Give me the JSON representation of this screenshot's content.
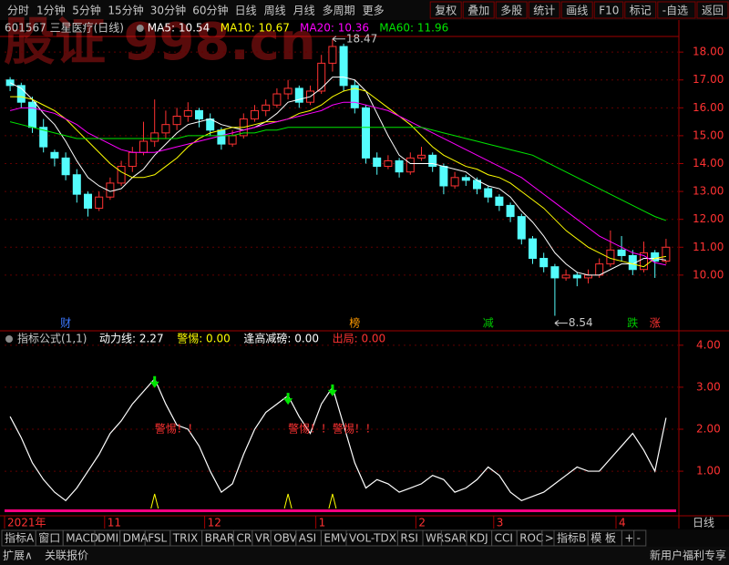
{
  "toolbar": {
    "left": [
      "分时",
      "1分钟",
      "5分钟",
      "15分钟",
      "30分钟",
      "60分钟",
      "日线",
      "周线",
      "月线",
      "多周期",
      "更多"
    ],
    "right": [
      "复权",
      "叠加",
      "多股",
      "统计",
      "画线",
      "F10",
      "标记",
      "-自选",
      "返回"
    ]
  },
  "watermark": "股证 998.cn",
  "chart_data": [
    {
      "type": "candlestick",
      "title": "601567 三星医疗(日线)",
      "up_color": "#ff3232",
      "down_color": "#54fcfc",
      "ylim": [
        8.1,
        18.56
      ],
      "yticks": [
        {
          "value": 10,
          "label": "10.00"
        },
        {
          "value": 11,
          "label": "11.00"
        },
        {
          "value": 12,
          "label": "12.00"
        },
        {
          "value": 13,
          "label": "13.00"
        },
        {
          "value": 14,
          "label": "14.00"
        },
        {
          "value": 15,
          "label": "15.00"
        },
        {
          "value": 16,
          "label": "16.00"
        },
        {
          "value": 17,
          "label": "17.00"
        },
        {
          "value": 18,
          "label": "18.00"
        }
      ],
      "grid": true,
      "ohlc": [
        [
          17.0,
          17.1,
          16.6,
          16.8
        ],
        [
          16.8,
          16.9,
          16.0,
          16.2
        ],
        [
          16.2,
          16.4,
          15.1,
          15.3
        ],
        [
          15.3,
          15.6,
          14.4,
          14.6
        ],
        [
          14.4,
          14.5,
          13.9,
          14.2
        ],
        [
          14.2,
          14.4,
          13.4,
          13.6
        ],
        [
          13.6,
          13.8,
          12.6,
          12.9
        ],
        [
          12.9,
          13.0,
          12.1,
          12.4
        ],
        [
          12.4,
          13.0,
          12.3,
          12.8
        ],
        [
          12.8,
          13.5,
          12.7,
          13.3
        ],
        [
          13.3,
          14.1,
          13.2,
          13.9
        ],
        [
          13.9,
          14.6,
          13.7,
          14.4
        ],
        [
          14.4,
          15.5,
          14.3,
          14.8
        ],
        [
          14.8,
          16.3,
          14.6,
          15.1
        ],
        [
          15.1,
          15.9,
          14.9,
          15.4
        ],
        [
          15.4,
          16.0,
          15.2,
          15.7
        ],
        [
          15.7,
          16.2,
          15.5,
          15.9
        ],
        [
          15.9,
          16.0,
          15.3,
          15.6
        ],
        [
          15.6,
          15.8,
          15.0,
          15.2
        ],
        [
          15.2,
          15.3,
          14.5,
          14.7
        ],
        [
          14.7,
          15.2,
          14.6,
          15.0
        ],
        [
          15.0,
          15.8,
          14.9,
          15.6
        ],
        [
          15.6,
          16.1,
          15.5,
          15.9
        ],
        [
          15.9,
          16.3,
          15.7,
          16.1
        ],
        [
          16.1,
          16.7,
          16.0,
          16.5
        ],
        [
          16.5,
          17.0,
          16.3,
          16.7
        ],
        [
          16.7,
          16.8,
          16.0,
          16.2
        ],
        [
          16.2,
          16.8,
          16.1,
          16.6
        ],
        [
          16.6,
          17.9,
          16.5,
          17.6
        ],
        [
          17.6,
          18.47,
          17.3,
          18.2
        ],
        [
          18.2,
          18.3,
          16.6,
          16.8
        ],
        [
          16.8,
          17.0,
          15.8,
          16.0
        ],
        [
          16.0,
          16.1,
          14.0,
          14.2
        ],
        [
          14.2,
          14.4,
          13.6,
          13.9
        ],
        [
          13.9,
          14.3,
          13.8,
          14.1
        ],
        [
          14.1,
          14.2,
          13.5,
          13.7
        ],
        [
          13.7,
          14.4,
          13.6,
          14.2
        ],
        [
          14.2,
          14.6,
          14.1,
          14.3
        ],
        [
          14.3,
          14.4,
          13.7,
          13.9
        ],
        [
          13.9,
          14.0,
          12.9,
          13.2
        ],
        [
          13.2,
          13.7,
          13.1,
          13.5
        ],
        [
          13.5,
          13.6,
          13.2,
          13.4
        ],
        [
          13.4,
          13.5,
          12.9,
          13.1
        ],
        [
          13.1,
          13.2,
          12.6,
          12.8
        ],
        [
          12.8,
          12.9,
          12.3,
          12.5
        ],
        [
          12.5,
          12.6,
          11.9,
          12.1
        ],
        [
          12.1,
          12.2,
          11.1,
          11.3
        ],
        [
          11.3,
          11.4,
          10.4,
          10.6
        ],
        [
          10.6,
          10.8,
          10.1,
          10.3
        ],
        [
          10.3,
          10.4,
          8.54,
          9.9
        ],
        [
          9.9,
          10.2,
          9.8,
          10.0
        ],
        [
          10.0,
          10.1,
          9.6,
          9.9
        ],
        [
          9.9,
          10.2,
          9.7,
          10.0
        ],
        [
          10.0,
          10.6,
          9.9,
          10.4
        ],
        [
          10.4,
          11.6,
          10.3,
          10.9
        ],
        [
          10.9,
          11.4,
          10.5,
          10.7
        ],
        [
          10.7,
          10.9,
          10.0,
          10.2
        ],
        [
          10.2,
          11.2,
          10.1,
          10.8
        ],
        [
          10.8,
          10.9,
          9.9,
          10.5
        ],
        [
          10.5,
          11.3,
          10.4,
          11.0
        ]
      ],
      "series": [
        {
          "name": "MA5",
          "legend": "MA5: 10.54",
          "color": "#ffffff",
          "values": [
            16.9,
            16.7,
            16.3,
            15.8,
            15.4,
            14.8,
            14.1,
            13.5,
            13.2,
            13.0,
            13.1,
            13.5,
            13.8,
            14.3,
            14.7,
            15.1,
            15.4,
            15.5,
            15.6,
            15.4,
            15.3,
            15.2,
            15.3,
            15.5,
            15.8,
            16.2,
            16.3,
            16.4,
            16.7,
            17.1,
            17.1,
            17.0,
            16.6,
            15.8,
            15.0,
            14.3,
            14.0,
            14.0,
            14.0,
            13.9,
            13.8,
            13.7,
            13.4,
            13.2,
            13.1,
            12.8,
            12.3,
            11.9,
            11.4,
            10.8,
            10.4,
            10.1,
            10.0,
            10.0,
            10.2,
            10.4,
            10.4,
            10.6,
            10.6,
            10.54
          ]
        },
        {
          "name": "MA10",
          "legend": "MA10: 10.67",
          "color": "#ffff00",
          "values": [
            16.4,
            16.4,
            16.3,
            16.1,
            15.9,
            15.6,
            15.2,
            14.8,
            14.4,
            14.0,
            13.7,
            13.5,
            13.5,
            13.6,
            13.9,
            14.2,
            14.6,
            14.9,
            15.1,
            15.2,
            15.3,
            15.3,
            15.4,
            15.5,
            15.5,
            15.6,
            15.8,
            15.9,
            16.1,
            16.4,
            16.6,
            16.7,
            16.6,
            16.3,
            16.0,
            15.7,
            15.4,
            15.0,
            14.6,
            14.3,
            14.1,
            13.9,
            13.8,
            13.6,
            13.5,
            13.3,
            13.0,
            12.7,
            12.4,
            12.0,
            11.6,
            11.3,
            11.0,
            10.8,
            10.6,
            10.5,
            10.4,
            10.3,
            10.6,
            10.67
          ]
        },
        {
          "name": "MA20",
          "legend": "MA20: 10.36",
          "color": "#ff00ff",
          "values": [
            15.9,
            16.0,
            16.0,
            15.9,
            15.8,
            15.6,
            15.4,
            15.1,
            14.9,
            14.7,
            14.5,
            14.4,
            14.4,
            14.4,
            14.5,
            14.6,
            14.7,
            14.8,
            14.9,
            15.0,
            15.1,
            15.2,
            15.3,
            15.4,
            15.5,
            15.6,
            15.7,
            15.8,
            15.9,
            16.1,
            16.2,
            16.2,
            16.1,
            16.0,
            15.9,
            15.7,
            15.5,
            15.3,
            15.1,
            14.9,
            14.7,
            14.5,
            14.3,
            14.1,
            13.9,
            13.7,
            13.5,
            13.2,
            12.9,
            12.6,
            12.3,
            12.0,
            11.7,
            11.4,
            11.2,
            11.0,
            10.8,
            10.7,
            10.45,
            10.36
          ]
        },
        {
          "name": "MA60",
          "legend": "MA60: 11.96",
          "color": "#00e600",
          "values": [
            15.5,
            15.4,
            15.3,
            15.2,
            15.1,
            15.0,
            14.9,
            14.9,
            14.9,
            14.9,
            14.9,
            14.9,
            14.9,
            14.9,
            14.9,
            14.9,
            15.0,
            15.0,
            15.0,
            15.0,
            15.0,
            15.1,
            15.1,
            15.2,
            15.2,
            15.3,
            15.3,
            15.3,
            15.3,
            15.3,
            15.3,
            15.3,
            15.3,
            15.3,
            15.3,
            15.3,
            15.3,
            15.3,
            15.2,
            15.1,
            15.0,
            14.9,
            14.8,
            14.7,
            14.6,
            14.5,
            14.4,
            14.3,
            14.1,
            13.9,
            13.7,
            13.5,
            13.3,
            13.1,
            12.9,
            12.7,
            12.5,
            12.3,
            12.1,
            11.96
          ]
        }
      ],
      "annotations": [
        {
          "value": 18.47,
          "index": 29
        },
        {
          "value": 8.54,
          "index": 49
        }
      ],
      "markers": [
        {
          "text": "财",
          "index": 5,
          "color": "#3c78ff"
        },
        {
          "text": "榜",
          "index": 31,
          "color": "#ff9a00"
        },
        {
          "text": "减",
          "index": 43,
          "color": "#00c800"
        },
        {
          "text": "跌",
          "index": 56,
          "color": "#00c800"
        },
        {
          "text": "涨",
          "index": 58,
          "color": "#ff3232"
        }
      ]
    },
    {
      "type": "line",
      "title": "指标公式(1,1)",
      "legend": [
        {
          "text": "动力线: 2.27",
          "color": "#ffffff"
        },
        {
          "text": "警惕: 0.00",
          "color": "#ffff00"
        },
        {
          "text": "逢高减磅: 0.00",
          "color": "#ffffff"
        },
        {
          "text": "出局: 0.00",
          "color": "#ff3232"
        }
      ],
      "ylim": [
        -0.04,
        4.3
      ],
      "yticks": [
        {
          "value": 1,
          "label": "1.00"
        },
        {
          "value": 2,
          "label": "2.00"
        },
        {
          "value": 3,
          "label": "3.00"
        },
        {
          "value": 4,
          "label": "4.00"
        }
      ],
      "grid": true,
      "series": [
        {
          "name": "动力线",
          "color": "#ffffff",
          "values": [
            2.3,
            1.8,
            1.2,
            0.8,
            0.5,
            0.3,
            0.6,
            1.0,
            1.4,
            1.9,
            2.2,
            2.6,
            2.9,
            3.2,
            2.6,
            2.1,
            2.0,
            1.6,
            1.0,
            0.5,
            0.7,
            1.4,
            2.0,
            2.4,
            2.6,
            2.8,
            2.3,
            1.9,
            2.6,
            3.0,
            2.1,
            1.2,
            0.6,
            0.8,
            0.7,
            0.5,
            0.6,
            0.7,
            0.9,
            0.8,
            0.5,
            0.6,
            0.8,
            1.1,
            0.9,
            0.5,
            0.3,
            0.4,
            0.5,
            0.7,
            0.9,
            1.1,
            1.0,
            1.0,
            1.3,
            1.6,
            1.9,
            1.5,
            1.0,
            2.27
          ]
        }
      ],
      "signal_label": "警惕！！",
      "signals": [
        13,
        25,
        29
      ]
    }
  ],
  "dates": {
    "labels": [
      {
        "label": "2021年",
        "index": 0
      },
      {
        "label": "11",
        "index": 9
      },
      {
        "label": "12",
        "index": 18
      },
      {
        "label": "1",
        "index": 28
      },
      {
        "label": "2",
        "index": 37
      },
      {
        "label": "3",
        "index": 44
      },
      {
        "label": "4",
        "index": 55
      }
    ],
    "period": "日线"
  },
  "tabs": [
    "指标A",
    "窗口",
    "MACD",
    "DMI",
    "DMA",
    "FSL",
    "TRIX",
    "BRAR",
    "CR",
    "VR",
    "OBV",
    "ASI",
    "EMV",
    "VOL-TDX",
    "RSI",
    "WR",
    "SAR",
    "KDJ",
    "CCI",
    "ROC",
    ">",
    "指标B",
    "模 板",
    "+",
    "-"
  ],
  "footer": {
    "left": [
      "扩展∧",
      "关联报价"
    ],
    "right": "新用户福利专享"
  }
}
